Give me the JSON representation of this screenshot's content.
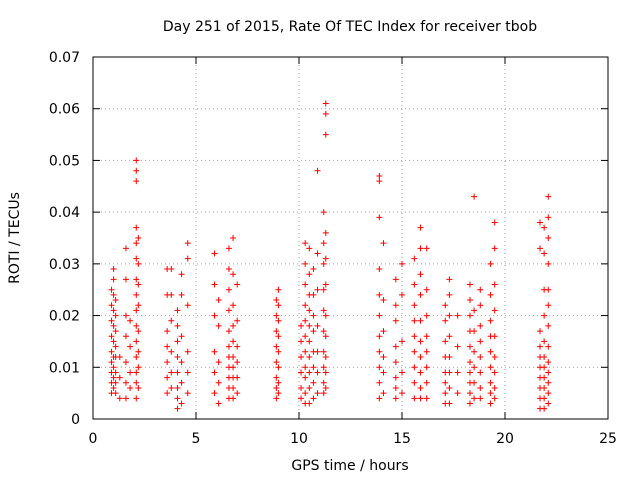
{
  "chart_data": {
    "type": "scatter",
    "title": "Day 251 of 2015, Rate Of TEC Index for receiver tbob",
    "xlabel": "GPS time / hours",
    "ylabel": "ROTI / TECUs",
    "xlim": [
      0,
      25
    ],
    "ylim": [
      0,
      0.07
    ],
    "xticks": [
      0,
      5,
      10,
      15,
      20,
      25
    ],
    "yticks": [
      0,
      0.01,
      0.02,
      0.03,
      0.04,
      0.05,
      0.06,
      0.07
    ],
    "xtick_labels": [
      "0",
      "5",
      "10",
      "15",
      "20",
      "25"
    ],
    "ytick_labels": [
      "0",
      "0.01",
      "0.02",
      "0.03",
      "0.04",
      "0.05",
      "0.06",
      "0.07"
    ],
    "grid": true,
    "legend": "none",
    "marker": "+",
    "color": "#ff0000",
    "points": [
      [
        0.9,
        0.005
      ],
      [
        0.9,
        0.007
      ],
      [
        0.9,
        0.009
      ],
      [
        0.9,
        0.011
      ],
      [
        0.9,
        0.013
      ],
      [
        0.9,
        0.016
      ],
      [
        0.9,
        0.019
      ],
      [
        0.9,
        0.022
      ],
      [
        0.9,
        0.025
      ],
      [
        1.0,
        0.006
      ],
      [
        1.0,
        0.008
      ],
      [
        1.0,
        0.01
      ],
      [
        1.0,
        0.012
      ],
      [
        1.0,
        0.015
      ],
      [
        1.0,
        0.018
      ],
      [
        1.0,
        0.021
      ],
      [
        1.0,
        0.024
      ],
      [
        1.0,
        0.027
      ],
      [
        1.0,
        0.029
      ],
      [
        1.1,
        0.005
      ],
      [
        1.1,
        0.007
      ],
      [
        1.1,
        0.009
      ],
      [
        1.1,
        0.012
      ],
      [
        1.1,
        0.014
      ],
      [
        1.1,
        0.017
      ],
      [
        1.1,
        0.02
      ],
      [
        1.1,
        0.023
      ],
      [
        1.3,
        0.004
      ],
      [
        1.3,
        0.008
      ],
      [
        1.3,
        0.012
      ],
      [
        1.6,
        0.004
      ],
      [
        1.6,
        0.007
      ],
      [
        1.6,
        0.011
      ],
      [
        1.6,
        0.016
      ],
      [
        1.6,
        0.02
      ],
      [
        1.6,
        0.027
      ],
      [
        1.6,
        0.033
      ],
      [
        1.8,
        0.006
      ],
      [
        1.8,
        0.009
      ],
      [
        1.8,
        0.014
      ],
      [
        1.8,
        0.019
      ],
      [
        2.1,
        0.004
      ],
      [
        2.1,
        0.007
      ],
      [
        2.1,
        0.009
      ],
      [
        2.1,
        0.012
      ],
      [
        2.1,
        0.015
      ],
      [
        2.1,
        0.018
      ],
      [
        2.1,
        0.021
      ],
      [
        2.1,
        0.024
      ],
      [
        2.1,
        0.027
      ],
      [
        2.1,
        0.031
      ],
      [
        2.1,
        0.034
      ],
      [
        2.1,
        0.037
      ],
      [
        2.1,
        0.046
      ],
      [
        2.1,
        0.048
      ],
      [
        2.1,
        0.05
      ],
      [
        2.2,
        0.006
      ],
      [
        2.2,
        0.01
      ],
      [
        2.2,
        0.013
      ],
      [
        2.2,
        0.017
      ],
      [
        2.2,
        0.022
      ],
      [
        2.2,
        0.026
      ],
      [
        2.2,
        0.03
      ],
      [
        2.2,
        0.035
      ],
      [
        3.6,
        0.005
      ],
      [
        3.6,
        0.008
      ],
      [
        3.6,
        0.011
      ],
      [
        3.6,
        0.014
      ],
      [
        3.6,
        0.017
      ],
      [
        3.6,
        0.024
      ],
      [
        3.6,
        0.029
      ],
      [
        3.8,
        0.006
      ],
      [
        3.8,
        0.009
      ],
      [
        3.8,
        0.013
      ],
      [
        3.8,
        0.019
      ],
      [
        3.8,
        0.024
      ],
      [
        3.8,
        0.029
      ],
      [
        4.1,
        0.002
      ],
      [
        4.1,
        0.004
      ],
      [
        4.1,
        0.006
      ],
      [
        4.1,
        0.009
      ],
      [
        4.1,
        0.012
      ],
      [
        4.1,
        0.015
      ],
      [
        4.1,
        0.018
      ],
      [
        4.1,
        0.021
      ],
      [
        4.3,
        0.003
      ],
      [
        4.3,
        0.007
      ],
      [
        4.3,
        0.011
      ],
      [
        4.3,
        0.016
      ],
      [
        4.3,
        0.024
      ],
      [
        4.3,
        0.028
      ],
      [
        4.6,
        0.005
      ],
      [
        4.6,
        0.009
      ],
      [
        4.6,
        0.013
      ],
      [
        4.6,
        0.022
      ],
      [
        4.6,
        0.031
      ],
      [
        4.6,
        0.034
      ],
      [
        5.9,
        0.005
      ],
      [
        5.9,
        0.009
      ],
      [
        5.9,
        0.013
      ],
      [
        5.9,
        0.02
      ],
      [
        5.9,
        0.026
      ],
      [
        5.9,
        0.032
      ],
      [
        6.1,
        0.003
      ],
      [
        6.1,
        0.007
      ],
      [
        6.1,
        0.011
      ],
      [
        6.1,
        0.018
      ],
      [
        6.1,
        0.023
      ],
      [
        6.6,
        0.004
      ],
      [
        6.6,
        0.006
      ],
      [
        6.6,
        0.008
      ],
      [
        6.6,
        0.01
      ],
      [
        6.6,
        0.012
      ],
      [
        6.6,
        0.014
      ],
      [
        6.6,
        0.017
      ],
      [
        6.6,
        0.021
      ],
      [
        6.6,
        0.025
      ],
      [
        6.6,
        0.029
      ],
      [
        6.6,
        0.033
      ],
      [
        6.8,
        0.004
      ],
      [
        6.8,
        0.006
      ],
      [
        6.8,
        0.008
      ],
      [
        6.8,
        0.01
      ],
      [
        6.8,
        0.012
      ],
      [
        6.8,
        0.015
      ],
      [
        6.8,
        0.018
      ],
      [
        6.8,
        0.022
      ],
      [
        6.8,
        0.028
      ],
      [
        6.8,
        0.035
      ],
      [
        7.0,
        0.005
      ],
      [
        7.0,
        0.008
      ],
      [
        7.0,
        0.011
      ],
      [
        7.0,
        0.014
      ],
      [
        7.0,
        0.019
      ],
      [
        7.0,
        0.026
      ],
      [
        8.9,
        0.004
      ],
      [
        8.9,
        0.006
      ],
      [
        8.9,
        0.008
      ],
      [
        8.9,
        0.011
      ],
      [
        8.9,
        0.014
      ],
      [
        8.9,
        0.017
      ],
      [
        8.9,
        0.02
      ],
      [
        8.9,
        0.023
      ],
      [
        9.0,
        0.005
      ],
      [
        9.0,
        0.007
      ],
      [
        9.0,
        0.01
      ],
      [
        9.0,
        0.013
      ],
      [
        9.0,
        0.016
      ],
      [
        9.0,
        0.019
      ],
      [
        9.0,
        0.022
      ],
      [
        9.0,
        0.025
      ],
      [
        10.1,
        0.004
      ],
      [
        10.1,
        0.006
      ],
      [
        10.1,
        0.009
      ],
      [
        10.1,
        0.012
      ],
      [
        10.1,
        0.015
      ],
      [
        10.1,
        0.018
      ],
      [
        10.3,
        0.003
      ],
      [
        10.3,
        0.005
      ],
      [
        10.3,
        0.008
      ],
      [
        10.3,
        0.01
      ],
      [
        10.3,
        0.013
      ],
      [
        10.3,
        0.016
      ],
      [
        10.3,
        0.019
      ],
      [
        10.3,
        0.022
      ],
      [
        10.3,
        0.026
      ],
      [
        10.3,
        0.03
      ],
      [
        10.3,
        0.034
      ],
      [
        10.5,
        0.003
      ],
      [
        10.5,
        0.006
      ],
      [
        10.5,
        0.009
      ],
      [
        10.5,
        0.012
      ],
      [
        10.5,
        0.015
      ],
      [
        10.5,
        0.018
      ],
      [
        10.5,
        0.021
      ],
      [
        10.5,
        0.024
      ],
      [
        10.5,
        0.028
      ],
      [
        10.5,
        0.033
      ],
      [
        10.7,
        0.004
      ],
      [
        10.7,
        0.007
      ],
      [
        10.7,
        0.01
      ],
      [
        10.7,
        0.013
      ],
      [
        10.7,
        0.017
      ],
      [
        10.7,
        0.02
      ],
      [
        10.7,
        0.024
      ],
      [
        10.7,
        0.029
      ],
      [
        10.9,
        0.005
      ],
      [
        10.9,
        0.009
      ],
      [
        10.9,
        0.013
      ],
      [
        10.9,
        0.018
      ],
      [
        10.9,
        0.025
      ],
      [
        10.9,
        0.032
      ],
      [
        10.9,
        0.048
      ],
      [
        11.2,
        0.005
      ],
      [
        11.2,
        0.007
      ],
      [
        11.2,
        0.01
      ],
      [
        11.2,
        0.013
      ],
      [
        11.2,
        0.017
      ],
      [
        11.2,
        0.021
      ],
      [
        11.2,
        0.025
      ],
      [
        11.2,
        0.03
      ],
      [
        11.2,
        0.034
      ],
      [
        11.2,
        0.04
      ],
      [
        11.3,
        0.006
      ],
      [
        11.3,
        0.009
      ],
      [
        11.3,
        0.012
      ],
      [
        11.3,
        0.016
      ],
      [
        11.3,
        0.02
      ],
      [
        11.3,
        0.026
      ],
      [
        11.3,
        0.031
      ],
      [
        11.3,
        0.036
      ],
      [
        11.3,
        0.055
      ],
      [
        11.3,
        0.059
      ],
      [
        11.3,
        0.061
      ],
      [
        13.9,
        0.004
      ],
      [
        13.9,
        0.007
      ],
      [
        13.9,
        0.01
      ],
      [
        13.9,
        0.013
      ],
      [
        13.9,
        0.016
      ],
      [
        13.9,
        0.02
      ],
      [
        13.9,
        0.024
      ],
      [
        13.9,
        0.029
      ],
      [
        13.9,
        0.039
      ],
      [
        13.9,
        0.046
      ],
      [
        13.9,
        0.047
      ],
      [
        14.1,
        0.005
      ],
      [
        14.1,
        0.009
      ],
      [
        14.1,
        0.012
      ],
      [
        14.1,
        0.017
      ],
      [
        14.1,
        0.023
      ],
      [
        14.1,
        0.034
      ],
      [
        14.7,
        0.004
      ],
      [
        14.7,
        0.006
      ],
      [
        14.7,
        0.008
      ],
      [
        14.7,
        0.011
      ],
      [
        14.7,
        0.014
      ],
      [
        14.7,
        0.019
      ],
      [
        14.7,
        0.022
      ],
      [
        14.7,
        0.027
      ],
      [
        15.0,
        0.005
      ],
      [
        15.0,
        0.009
      ],
      [
        15.0,
        0.015
      ],
      [
        15.0,
        0.024
      ],
      [
        15.0,
        0.03
      ],
      [
        15.6,
        0.004
      ],
      [
        15.6,
        0.007
      ],
      [
        15.6,
        0.01
      ],
      [
        15.6,
        0.013
      ],
      [
        15.6,
        0.016
      ],
      [
        15.6,
        0.019
      ],
      [
        15.6,
        0.022
      ],
      [
        15.6,
        0.026
      ],
      [
        15.6,
        0.031
      ],
      [
        15.9,
        0.004
      ],
      [
        15.9,
        0.006
      ],
      [
        15.9,
        0.009
      ],
      [
        15.9,
        0.012
      ],
      [
        15.9,
        0.015
      ],
      [
        15.9,
        0.019
      ],
      [
        15.9,
        0.024
      ],
      [
        15.9,
        0.028
      ],
      [
        15.9,
        0.033
      ],
      [
        15.9,
        0.037
      ],
      [
        16.2,
        0.004
      ],
      [
        16.2,
        0.007
      ],
      [
        16.2,
        0.01
      ],
      [
        16.2,
        0.013
      ],
      [
        16.2,
        0.016
      ],
      [
        16.2,
        0.02
      ],
      [
        16.2,
        0.025
      ],
      [
        16.2,
        0.033
      ],
      [
        17.1,
        0.003
      ],
      [
        17.1,
        0.005
      ],
      [
        17.1,
        0.007
      ],
      [
        17.1,
        0.009
      ],
      [
        17.1,
        0.012
      ],
      [
        17.1,
        0.015
      ],
      [
        17.1,
        0.019
      ],
      [
        17.1,
        0.022
      ],
      [
        17.3,
        0.003
      ],
      [
        17.3,
        0.006
      ],
      [
        17.3,
        0.009
      ],
      [
        17.3,
        0.012
      ],
      [
        17.3,
        0.016
      ],
      [
        17.3,
        0.02
      ],
      [
        17.3,
        0.024
      ],
      [
        17.3,
        0.027
      ],
      [
        17.7,
        0.005
      ],
      [
        17.7,
        0.009
      ],
      [
        17.7,
        0.014
      ],
      [
        17.7,
        0.02
      ],
      [
        18.3,
        0.003
      ],
      [
        18.3,
        0.005
      ],
      [
        18.3,
        0.007
      ],
      [
        18.3,
        0.009
      ],
      [
        18.3,
        0.011
      ],
      [
        18.3,
        0.014
      ],
      [
        18.3,
        0.017
      ],
      [
        18.3,
        0.02
      ],
      [
        18.3,
        0.023
      ],
      [
        18.3,
        0.026
      ],
      [
        18.5,
        0.004
      ],
      [
        18.5,
        0.007
      ],
      [
        18.5,
        0.01
      ],
      [
        18.5,
        0.013
      ],
      [
        18.5,
        0.017
      ],
      [
        18.5,
        0.021
      ],
      [
        18.5,
        0.043
      ],
      [
        18.8,
        0.004
      ],
      [
        18.8,
        0.006
      ],
      [
        18.8,
        0.009
      ],
      [
        18.8,
        0.012
      ],
      [
        18.8,
        0.015
      ],
      [
        18.8,
        0.018
      ],
      [
        18.8,
        0.022
      ],
      [
        18.8,
        0.025
      ],
      [
        19.3,
        0.003
      ],
      [
        19.3,
        0.005
      ],
      [
        19.3,
        0.007
      ],
      [
        19.3,
        0.01
      ],
      [
        19.3,
        0.013
      ],
      [
        19.3,
        0.016
      ],
      [
        19.3,
        0.019
      ],
      [
        19.3,
        0.024
      ],
      [
        19.3,
        0.03
      ],
      [
        19.5,
        0.004
      ],
      [
        19.5,
        0.006
      ],
      [
        19.5,
        0.009
      ],
      [
        19.5,
        0.012
      ],
      [
        19.5,
        0.016
      ],
      [
        19.5,
        0.021
      ],
      [
        19.5,
        0.026
      ],
      [
        19.5,
        0.033
      ],
      [
        19.5,
        0.038
      ],
      [
        21.7,
        0.002
      ],
      [
        21.7,
        0.004
      ],
      [
        21.7,
        0.006
      ],
      [
        21.7,
        0.008
      ],
      [
        21.7,
        0.01
      ],
      [
        21.7,
        0.012
      ],
      [
        21.7,
        0.014
      ],
      [
        21.7,
        0.017
      ],
      [
        21.7,
        0.033
      ],
      [
        21.7,
        0.038
      ],
      [
        21.9,
        0.002
      ],
      [
        21.9,
        0.004
      ],
      [
        21.9,
        0.006
      ],
      [
        21.9,
        0.008
      ],
      [
        21.9,
        0.01
      ],
      [
        21.9,
        0.012
      ],
      [
        21.9,
        0.015
      ],
      [
        21.9,
        0.02
      ],
      [
        21.9,
        0.025
      ],
      [
        21.9,
        0.032
      ],
      [
        21.9,
        0.037
      ],
      [
        22.1,
        0.003
      ],
      [
        22.1,
        0.005
      ],
      [
        22.1,
        0.007
      ],
      [
        22.1,
        0.009
      ],
      [
        22.1,
        0.011
      ],
      [
        22.1,
        0.014
      ],
      [
        22.1,
        0.018
      ],
      [
        22.1,
        0.022
      ],
      [
        22.1,
        0.025
      ],
      [
        22.1,
        0.03
      ],
      [
        22.1,
        0.035
      ],
      [
        22.1,
        0.039
      ],
      [
        22.1,
        0.043
      ]
    ]
  }
}
